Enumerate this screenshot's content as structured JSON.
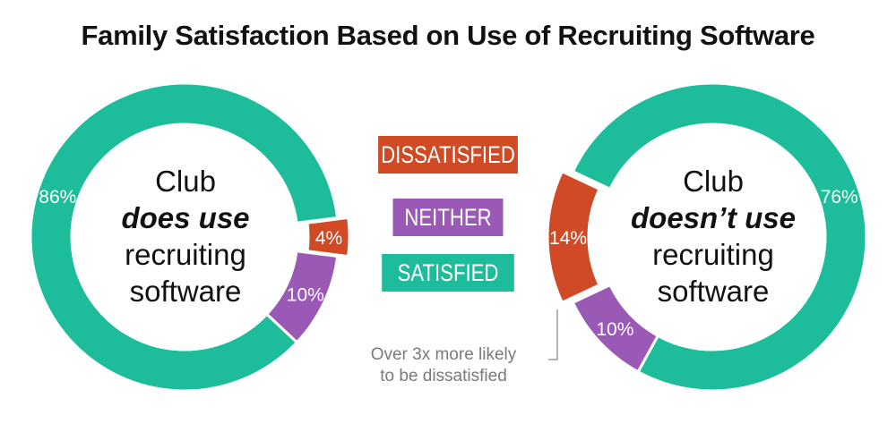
{
  "title": "Family Satisfaction Based on Use of Recruiting Software",
  "colors": {
    "satisfied": "#1dbc9a",
    "neither": "#9b59b6",
    "dissatisfied": "#d04a26",
    "annotation_text": "#7a7a7a"
  },
  "legend": [
    {
      "key": "dissatisfied",
      "label": "DISSATISFIED"
    },
    {
      "key": "neither",
      "label": "NEITHER"
    },
    {
      "key": "satisfied",
      "label": "SATISFIED"
    }
  ],
  "left_center": {
    "line1": "Club",
    "line2": "does use",
    "line3": "recruiting",
    "line4": "software"
  },
  "right_center": {
    "line1": "Club",
    "line2": "doesn’t use",
    "line3": "recruiting",
    "line4": "software"
  },
  "annotation": {
    "line1": "Over 3x more likely",
    "line2": "to be dissatisfied"
  },
  "chart_data": [
    {
      "type": "pie",
      "name": "Club does use recruiting software",
      "categories": [
        "Satisfied",
        "Neither",
        "Dissatisfied"
      ],
      "values": [
        86,
        10,
        4
      ],
      "labels": [
        "86%",
        "10%",
        "4%"
      ],
      "exploded": "Dissatisfied"
    },
    {
      "type": "pie",
      "name": "Club doesn’t use recruiting software",
      "categories": [
        "Satisfied",
        "Neither",
        "Dissatisfied"
      ],
      "values": [
        76,
        10,
        14
      ],
      "labels": [
        "76%",
        "10%",
        "14%"
      ],
      "exploded": "Dissatisfied"
    }
  ]
}
